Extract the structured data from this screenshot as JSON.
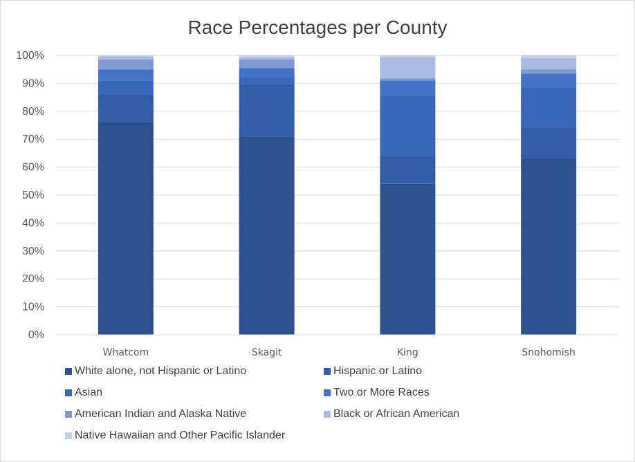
{
  "chart_data": {
    "type": "bar",
    "stacked": true,
    "title": "Race Percentages per County",
    "categories": [
      "Whatcom",
      "Skagit",
      "King",
      "Snohomish"
    ],
    "y_ticks": [
      "0%",
      "10%",
      "20%",
      "30%",
      "40%",
      "50%",
      "60%",
      "70%",
      "80%",
      "90%",
      "100%"
    ],
    "ylim": [
      0,
      100
    ],
    "grid": true,
    "legend_position": "bottom",
    "series": [
      {
        "name": "White alone, not Hispanic or Latino",
        "color": "#2f528f",
        "values": [
          76,
          70.8,
          54,
          63
        ]
      },
      {
        "name": "Hispanic or Latino",
        "color": "#335da6",
        "values": [
          10,
          19,
          10,
          11
        ]
      },
      {
        "name": "Asian",
        "color": "#3a67b7",
        "values": [
          5,
          2.5,
          21.5,
          14.5
        ]
      },
      {
        "name": "Two or More Races",
        "color": "#4472c4",
        "values": [
          4,
          3.2,
          5.5,
          5
        ]
      },
      {
        "name": "American Indian and Alaska Native",
        "color": "#7f99d1",
        "values": [
          3.5,
          3,
          0.8,
          1.5
        ]
      },
      {
        "name": "Black or African American",
        "color": "#a9bbe2",
        "values": [
          1,
          0.8,
          7.5,
          4
        ]
      },
      {
        "name": "Native Hawaiian and Other Pacific Islander",
        "color": "#c5d0ea",
        "values": [
          0.5,
          0.7,
          0.7,
          1
        ]
      }
    ]
  }
}
